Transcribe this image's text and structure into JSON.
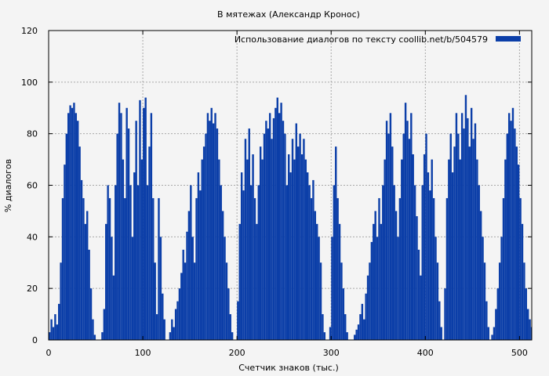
{
  "chart_data": {
    "type": "bar",
    "title": "В мятежах (Александр Кронос)",
    "xlabel": "Счетчик знаков (тыс.)",
    "ylabel": "% диалогов",
    "xlim": [
      0,
      513
    ],
    "ylim": [
      0,
      120
    ],
    "xticks": [
      0,
      100,
      200,
      300,
      400,
      500
    ],
    "yticks": [
      0,
      20,
      40,
      60,
      80,
      100,
      120
    ],
    "grid": true,
    "legend_position": "top-right",
    "series": [
      {
        "name": "Использование диалогов по тексту  coollib.net/b/504579",
        "color": "#0b3ea8",
        "description_points": [
          [
            0,
            3
          ],
          [
            2,
            8
          ],
          [
            4,
            5
          ],
          [
            6,
            10
          ],
          [
            8,
            6
          ],
          [
            10,
            14
          ],
          [
            12,
            30
          ],
          [
            14,
            55
          ],
          [
            16,
            68
          ],
          [
            18,
            80
          ],
          [
            20,
            88
          ],
          [
            22,
            91
          ],
          [
            24,
            90
          ],
          [
            26,
            92
          ],
          [
            28,
            88
          ],
          [
            30,
            85
          ],
          [
            32,
            75
          ],
          [
            34,
            62
          ],
          [
            36,
            55
          ],
          [
            38,
            45
          ],
          [
            40,
            50
          ],
          [
            42,
            35
          ],
          [
            44,
            20
          ],
          [
            46,
            8
          ],
          [
            48,
            2
          ],
          [
            50,
            0
          ],
          [
            52,
            0
          ],
          [
            54,
            0
          ],
          [
            56,
            3
          ],
          [
            58,
            12
          ],
          [
            60,
            45
          ],
          [
            62,
            60
          ],
          [
            64,
            55
          ],
          [
            66,
            40
          ],
          [
            68,
            25
          ],
          [
            70,
            60
          ],
          [
            72,
            80
          ],
          [
            74,
            92
          ],
          [
            76,
            88
          ],
          [
            78,
            70
          ],
          [
            80,
            55
          ],
          [
            82,
            90
          ],
          [
            84,
            82
          ],
          [
            86,
            60
          ],
          [
            88,
            40
          ],
          [
            90,
            65
          ],
          [
            92,
            85
          ],
          [
            94,
            60
          ],
          [
            96,
            93
          ],
          [
            98,
            70
          ],
          [
            100,
            90
          ],
          [
            102,
            94
          ],
          [
            104,
            60
          ],
          [
            106,
            75
          ],
          [
            108,
            88
          ],
          [
            110,
            55
          ],
          [
            112,
            30
          ],
          [
            114,
            10
          ],
          [
            116,
            55
          ],
          [
            118,
            40
          ],
          [
            120,
            18
          ],
          [
            122,
            8
          ],
          [
            124,
            0
          ],
          [
            126,
            0
          ],
          [
            128,
            3
          ],
          [
            130,
            8
          ],
          [
            132,
            5
          ],
          [
            134,
            12
          ],
          [
            136,
            15
          ],
          [
            138,
            20
          ],
          [
            140,
            26
          ],
          [
            142,
            35
          ],
          [
            144,
            30
          ],
          [
            146,
            42
          ],
          [
            148,
            50
          ],
          [
            150,
            60
          ],
          [
            152,
            40
          ],
          [
            154,
            30
          ],
          [
            156,
            55
          ],
          [
            158,
            65
          ],
          [
            160,
            58
          ],
          [
            162,
            70
          ],
          [
            164,
            75
          ],
          [
            166,
            80
          ],
          [
            168,
            88
          ],
          [
            170,
            85
          ],
          [
            172,
            90
          ],
          [
            174,
            84
          ],
          [
            176,
            88
          ],
          [
            178,
            82
          ],
          [
            180,
            70
          ],
          [
            182,
            60
          ],
          [
            184,
            50
          ],
          [
            186,
            40
          ],
          [
            188,
            30
          ],
          [
            190,
            20
          ],
          [
            192,
            10
          ],
          [
            194,
            3
          ],
          [
            196,
            0
          ],
          [
            198,
            0
          ],
          [
            200,
            15
          ],
          [
            202,
            45
          ],
          [
            204,
            65
          ],
          [
            206,
            58
          ],
          [
            208,
            78
          ],
          [
            210,
            70
          ],
          [
            212,
            82
          ],
          [
            214,
            60
          ],
          [
            216,
            72
          ],
          [
            218,
            55
          ],
          [
            220,
            45
          ],
          [
            222,
            60
          ],
          [
            224,
            75
          ],
          [
            226,
            70
          ],
          [
            228,
            80
          ],
          [
            230,
            85
          ],
          [
            232,
            82
          ],
          [
            234,
            88
          ],
          [
            236,
            78
          ],
          [
            238,
            86
          ],
          [
            240,
            90
          ],
          [
            242,
            94
          ],
          [
            244,
            88
          ],
          [
            246,
            92
          ],
          [
            248,
            85
          ],
          [
            250,
            80
          ],
          [
            252,
            60
          ],
          [
            254,
            72
          ],
          [
            256,
            65
          ],
          [
            258,
            78
          ],
          [
            260,
            70
          ],
          [
            262,
            84
          ],
          [
            264,
            75
          ],
          [
            266,
            80
          ],
          [
            268,
            72
          ],
          [
            270,
            78
          ],
          [
            272,
            70
          ],
          [
            274,
            65
          ],
          [
            276,
            60
          ],
          [
            278,
            55
          ],
          [
            280,
            62
          ],
          [
            282,
            50
          ],
          [
            284,
            45
          ],
          [
            286,
            40
          ],
          [
            288,
            30
          ],
          [
            290,
            10
          ],
          [
            292,
            3
          ],
          [
            294,
            0
          ],
          [
            296,
            0
          ],
          [
            298,
            5
          ],
          [
            300,
            40
          ],
          [
            302,
            60
          ],
          [
            304,
            75
          ],
          [
            306,
            55
          ],
          [
            308,
            45
          ],
          [
            310,
            30
          ],
          [
            312,
            20
          ],
          [
            314,
            10
          ],
          [
            316,
            3
          ],
          [
            318,
            0
          ],
          [
            320,
            0
          ],
          [
            322,
            0
          ],
          [
            324,
            2
          ],
          [
            326,
            4
          ],
          [
            328,
            6
          ],
          [
            330,
            10
          ],
          [
            332,
            14
          ],
          [
            334,
            8
          ],
          [
            336,
            18
          ],
          [
            338,
            25
          ],
          [
            340,
            30
          ],
          [
            342,
            38
          ],
          [
            344,
            45
          ],
          [
            346,
            50
          ],
          [
            348,
            40
          ],
          [
            350,
            55
          ],
          [
            352,
            45
          ],
          [
            354,
            60
          ],
          [
            356,
            70
          ],
          [
            358,
            85
          ],
          [
            360,
            80
          ],
          [
            362,
            88
          ],
          [
            364,
            75
          ],
          [
            366,
            60
          ],
          [
            368,
            50
          ],
          [
            370,
            40
          ],
          [
            372,
            55
          ],
          [
            374,
            70
          ],
          [
            376,
            80
          ],
          [
            378,
            92
          ],
          [
            380,
            85
          ],
          [
            382,
            78
          ],
          [
            384,
            88
          ],
          [
            386,
            72
          ],
          [
            388,
            60
          ],
          [
            390,
            48
          ],
          [
            392,
            35
          ],
          [
            394,
            25
          ],
          [
            396,
            60
          ],
          [
            398,
            72
          ],
          [
            400,
            80
          ],
          [
            402,
            65
          ],
          [
            404,
            58
          ],
          [
            406,
            70
          ],
          [
            408,
            55
          ],
          [
            410,
            40
          ],
          [
            412,
            30
          ],
          [
            414,
            15
          ],
          [
            416,
            5
          ],
          [
            418,
            0
          ],
          [
            420,
            20
          ],
          [
            422,
            55
          ],
          [
            424,
            70
          ],
          [
            426,
            80
          ],
          [
            428,
            65
          ],
          [
            430,
            75
          ],
          [
            432,
            88
          ],
          [
            434,
            80
          ],
          [
            436,
            70
          ],
          [
            438,
            88
          ],
          [
            440,
            82
          ],
          [
            442,
            95
          ],
          [
            444,
            86
          ],
          [
            446,
            75
          ],
          [
            448,
            90
          ],
          [
            450,
            78
          ],
          [
            452,
            84
          ],
          [
            454,
            70
          ],
          [
            456,
            60
          ],
          [
            458,
            50
          ],
          [
            460,
            40
          ],
          [
            462,
            30
          ],
          [
            464,
            15
          ],
          [
            466,
            5
          ],
          [
            468,
            0
          ],
          [
            470,
            2
          ],
          [
            472,
            5
          ],
          [
            474,
            12
          ],
          [
            476,
            20
          ],
          [
            478,
            30
          ],
          [
            480,
            40
          ],
          [
            482,
            55
          ],
          [
            484,
            70
          ],
          [
            486,
            80
          ],
          [
            488,
            88
          ],
          [
            490,
            85
          ],
          [
            492,
            90
          ],
          [
            494,
            82
          ],
          [
            496,
            75
          ],
          [
            498,
            68
          ],
          [
            500,
            55
          ],
          [
            502,
            45
          ],
          [
            504,
            30
          ],
          [
            506,
            20
          ],
          [
            508,
            12
          ],
          [
            510,
            8
          ],
          [
            512,
            5
          ]
        ]
      }
    ]
  }
}
